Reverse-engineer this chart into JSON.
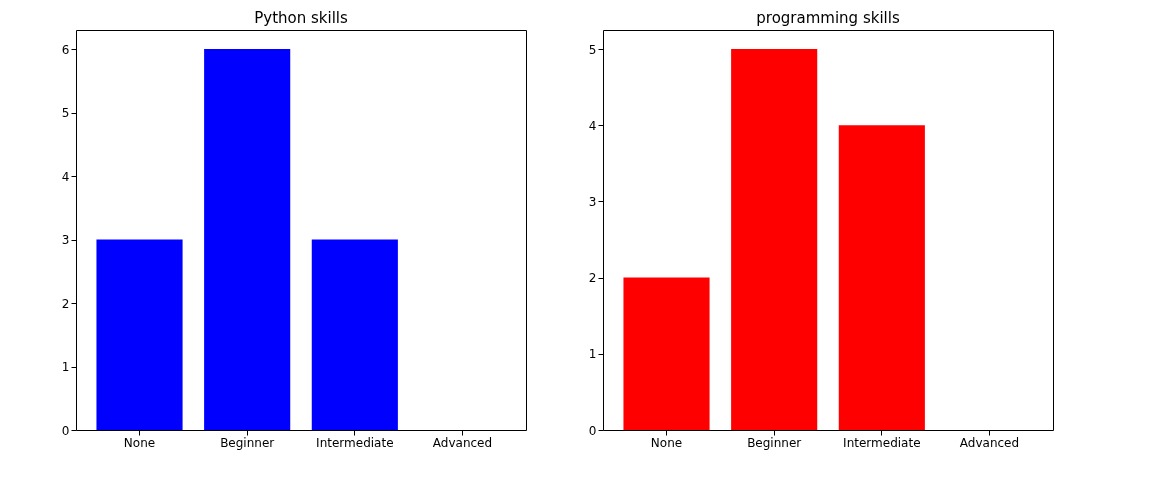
{
  "chart_data": [
    {
      "type": "bar",
      "title": "Python skills",
      "categories": [
        "None",
        "Beginner",
        "Intermediate",
        "Advanced"
      ],
      "values": [
        3,
        6,
        3,
        0
      ],
      "color": "#0000ff",
      "ylim": [
        0,
        6.3
      ],
      "yticks": [
        0,
        1,
        2,
        3,
        4,
        5,
        6
      ],
      "grid": false
    },
    {
      "type": "bar",
      "title": "programming skills",
      "categories": [
        "None",
        "Beginner",
        "Intermediate",
        "Advanced"
      ],
      "values": [
        2,
        5,
        4,
        0
      ],
      "color": "#ff0000",
      "ylim": [
        0,
        5.25
      ],
      "yticks": [
        0,
        1,
        2,
        3,
        4,
        5
      ],
      "grid": false
    }
  ]
}
